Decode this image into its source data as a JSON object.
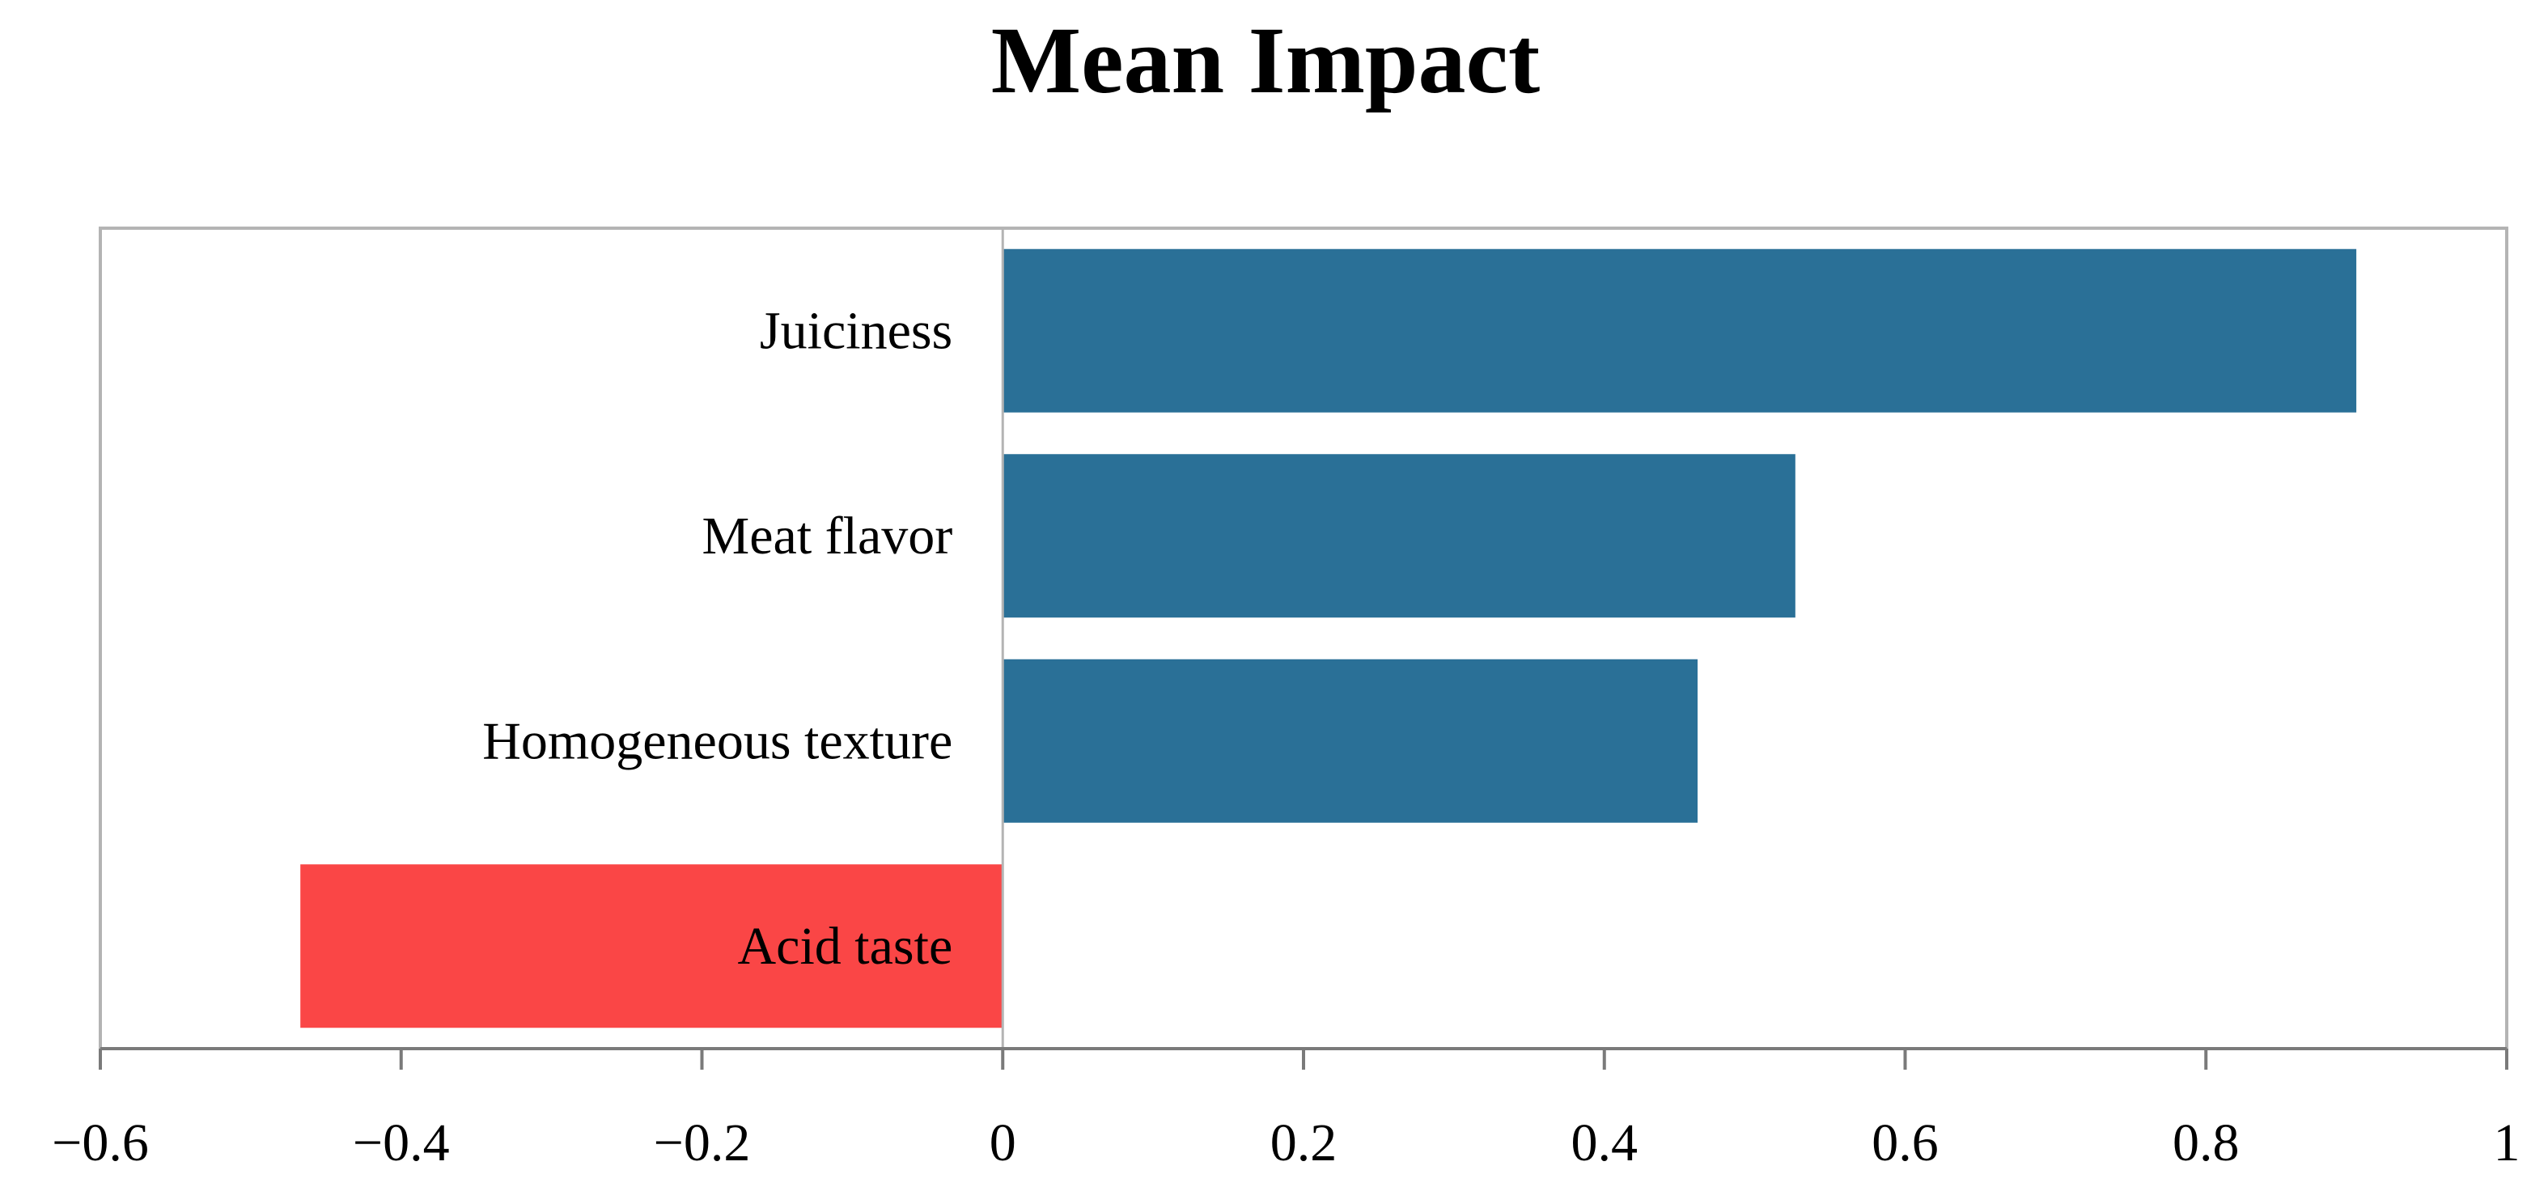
{
  "chart_data": {
    "type": "bar",
    "orientation": "horizontal",
    "title": "Mean Impact",
    "xlabel": "",
    "ylabel": "",
    "categories": [
      "Juiciness",
      "Meat flavor",
      "Homogeneous texture",
      "Acid taste"
    ],
    "values": [
      0.9,
      0.527,
      0.462,
      -0.467
    ],
    "xlim": [
      -0.6,
      1
    ],
    "xticks": [
      -0.6,
      -0.4,
      -0.2,
      0,
      0.2,
      0.4,
      0.6,
      0.8,
      1
    ],
    "xtick_labels": [
      "−0.6",
      "−0.4",
      "−0.2",
      "0",
      "0.2",
      "0.4",
      "0.6",
      "0.8",
      "1"
    ],
    "grid": false,
    "legend": "none",
    "colors": {
      "positive": "#2a7097",
      "negative": "#fa4646",
      "frame": "#b4b4b4",
      "axis": "#7a7a7a"
    }
  }
}
